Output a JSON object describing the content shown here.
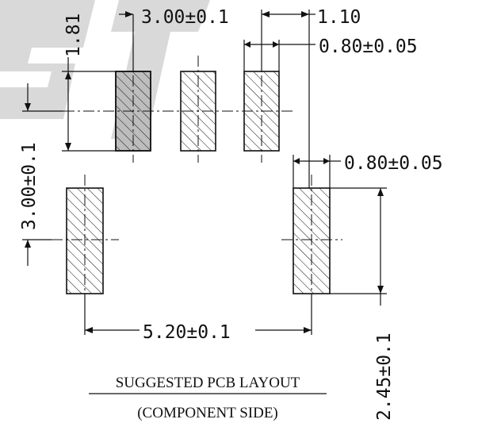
{
  "colors": {
    "ink": "#111111",
    "background": "#ffffff",
    "watermark": "#d9d9d9",
    "pad_shade": "#bdbdbd"
  },
  "dimensions": {
    "pad_pitch": "3.00±0.1",
    "pad_gap": "1.10",
    "top_pad_width": "0.80±0.05",
    "side_pad_width": "0.80±0.05",
    "pad_length": "1.81",
    "row_spacing": "3.00±0.1",
    "side_pad_length": "2.45±0.1",
    "side_pad_span": "5.20±0.1"
  },
  "caption": {
    "title": "SUGGESTED PCB LAYOUT",
    "subtitle": "(COMPONENT SIDE)"
  }
}
